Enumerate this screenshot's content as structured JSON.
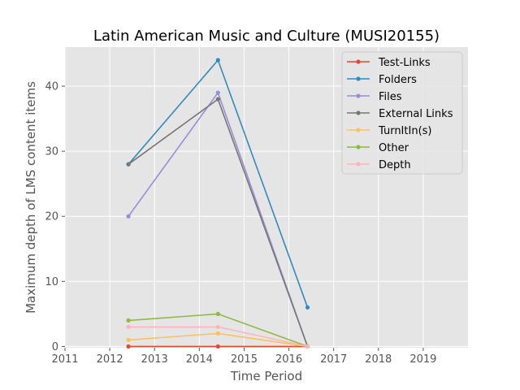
{
  "chart_data": {
    "type": "line",
    "title": "Latin American Music and Culture (MUSI20155)",
    "xlabel": "Time Period",
    "ylabel": "Maximum depth of LMS content items",
    "xlim": [
      2011,
      2020
    ],
    "ylim": [
      -0.2,
      46
    ],
    "x_ticks": [
      "2011",
      "2012",
      "2013",
      "2014",
      "2015",
      "2016",
      "2017",
      "2018",
      "2019"
    ],
    "y_ticks": [
      "0",
      "10",
      "20",
      "30",
      "40"
    ],
    "x": [
      "2012-06",
      "2014-06",
      "2016-06"
    ],
    "grid": true,
    "legend_position": "top-right",
    "series": [
      {
        "name": "Test-Links",
        "color": "#E24A33",
        "values": [
          0,
          0,
          0
        ]
      },
      {
        "name": "Folders",
        "color": "#348ABD",
        "values": [
          28,
          44,
          6
        ]
      },
      {
        "name": "Files",
        "color": "#988ED5",
        "values": [
          20,
          39,
          0
        ]
      },
      {
        "name": "External Links",
        "color": "#777777",
        "values": [
          28,
          38,
          0
        ]
      },
      {
        "name": "TurnItIn(s)",
        "color": "#FBC15E",
        "values": [
          1,
          2,
          0
        ]
      },
      {
        "name": "Other",
        "color": "#8EBA42",
        "values": [
          4,
          5,
          0
        ]
      },
      {
        "name": "Depth",
        "color": "#FFB5B8",
        "values": [
          3,
          3,
          0
        ]
      }
    ]
  }
}
